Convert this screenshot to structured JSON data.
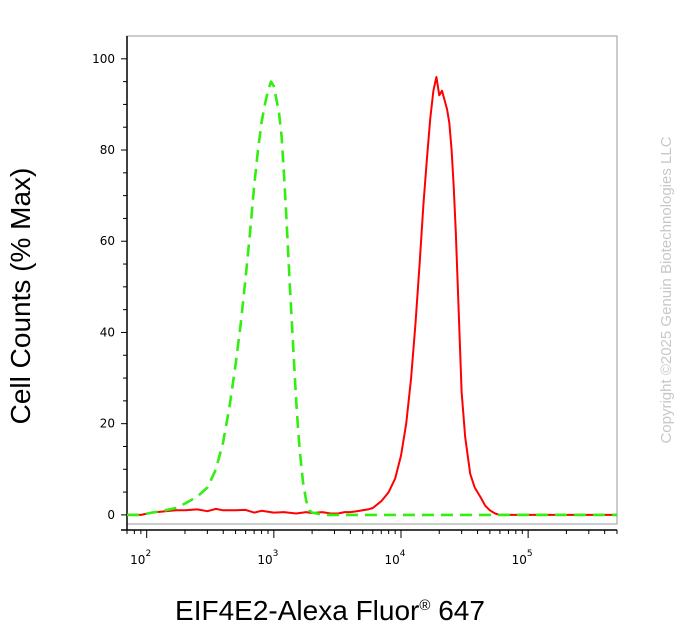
{
  "chart_data": {
    "type": "line",
    "xlabel": "EIF4E2-Alexa Fluor",
    "xlabel_mark": "®",
    "xlabel_suffix": " 647",
    "ylabel": "Cell Counts (% Max)",
    "x_scale": "log",
    "xlim": [
      70,
      500000
    ],
    "ylim": [
      -2,
      105
    ],
    "x_ticks": [
      {
        "value": 100,
        "base": "10",
        "exp": "2"
      },
      {
        "value": 1000,
        "base": "10",
        "exp": "3"
      },
      {
        "value": 10000,
        "base": "10",
        "exp": "4"
      },
      {
        "value": 100000,
        "base": "10",
        "exp": "5"
      }
    ],
    "y_ticks": [
      {
        "value": 0,
        "label": "0"
      },
      {
        "value": 20,
        "label": "20"
      },
      {
        "value": 40,
        "label": "40"
      },
      {
        "value": 60,
        "label": "60"
      },
      {
        "value": 80,
        "label": "80"
      },
      {
        "value": 100,
        "label": "100"
      }
    ],
    "grid": false,
    "series": [
      {
        "color": "#ff0000",
        "style": "solid",
        "points": [
          [
            70,
            0
          ],
          [
            90,
            0
          ],
          [
            110,
            0.5
          ],
          [
            140,
            0.8
          ],
          [
            170,
            1
          ],
          [
            200,
            1
          ],
          [
            250,
            1.2
          ],
          [
            300,
            0.8
          ],
          [
            350,
            1.3
          ],
          [
            400,
            1
          ],
          [
            500,
            1
          ],
          [
            600,
            1.1
          ],
          [
            700,
            0.5
          ],
          [
            800,
            0.9
          ],
          [
            1000,
            0.5
          ],
          [
            1200,
            0.6
          ],
          [
            1500,
            0.3
          ],
          [
            1800,
            0.6
          ],
          [
            2000,
            0.4
          ],
          [
            2400,
            0.6
          ],
          [
            2800,
            0.3
          ],
          [
            3200,
            0.3
          ],
          [
            3600,
            0.6
          ],
          [
            4000,
            0.6
          ],
          [
            4500,
            0.8
          ],
          [
            5000,
            1
          ],
          [
            5500,
            1.2
          ],
          [
            6000,
            1.5
          ],
          [
            7000,
            3
          ],
          [
            8000,
            5
          ],
          [
            9000,
            8
          ],
          [
            10000,
            13
          ],
          [
            11000,
            20
          ],
          [
            12000,
            30
          ],
          [
            13000,
            42
          ],
          [
            14000,
            55
          ],
          [
            15000,
            68
          ],
          [
            16000,
            78
          ],
          [
            17000,
            87
          ],
          [
            18000,
            93
          ],
          [
            19000,
            96
          ],
          [
            20000,
            92
          ],
          [
            21000,
            93
          ],
          [
            22000,
            91
          ],
          [
            23000,
            89
          ],
          [
            24000,
            86
          ],
          [
            25000,
            80
          ],
          [
            26000,
            72
          ],
          [
            27000,
            62
          ],
          [
            28000,
            50
          ],
          [
            29000,
            38
          ],
          [
            30000,
            27
          ],
          [
            32000,
            17
          ],
          [
            35000,
            9
          ],
          [
            38000,
            6
          ],
          [
            42000,
            4
          ],
          [
            46000,
            2
          ],
          [
            50000,
            1
          ],
          [
            55000,
            0.3
          ],
          [
            60000,
            0
          ],
          [
            100000,
            0
          ],
          [
            200000,
            0
          ],
          [
            500000,
            0
          ]
        ]
      },
      {
        "color": "#33ee11",
        "style": "dashed",
        "points": [
          [
            70,
            0
          ],
          [
            90,
            0
          ],
          [
            110,
            0.5
          ],
          [
            140,
            1
          ],
          [
            170,
            1.5
          ],
          [
            200,
            2.5
          ],
          [
            250,
            4
          ],
          [
            300,
            6
          ],
          [
            350,
            10
          ],
          [
            400,
            16
          ],
          [
            450,
            24
          ],
          [
            500,
            33
          ],
          [
            550,
            42
          ],
          [
            600,
            52
          ],
          [
            650,
            62
          ],
          [
            700,
            72
          ],
          [
            750,
            80
          ],
          [
            800,
            86
          ],
          [
            850,
            90
          ],
          [
            900,
            93
          ],
          [
            950,
            95
          ],
          [
            1000,
            94
          ],
          [
            1050,
            91
          ],
          [
            1100,
            88
          ],
          [
            1150,
            83
          ],
          [
            1200,
            75
          ],
          [
            1250,
            66
          ],
          [
            1300,
            57
          ],
          [
            1350,
            48
          ],
          [
            1400,
            40
          ],
          [
            1450,
            32
          ],
          [
            1500,
            25
          ],
          [
            1550,
            19
          ],
          [
            1600,
            14
          ],
          [
            1700,
            7
          ],
          [
            1800,
            3
          ],
          [
            1900,
            1
          ],
          [
            2000,
            0.5
          ],
          [
            2500,
            0
          ],
          [
            10000,
            0
          ],
          [
            100000,
            0
          ],
          [
            500000,
            0
          ]
        ]
      }
    ]
  },
  "copyright": "Copyright ©2025 Genuin Biotechnologies LLC"
}
